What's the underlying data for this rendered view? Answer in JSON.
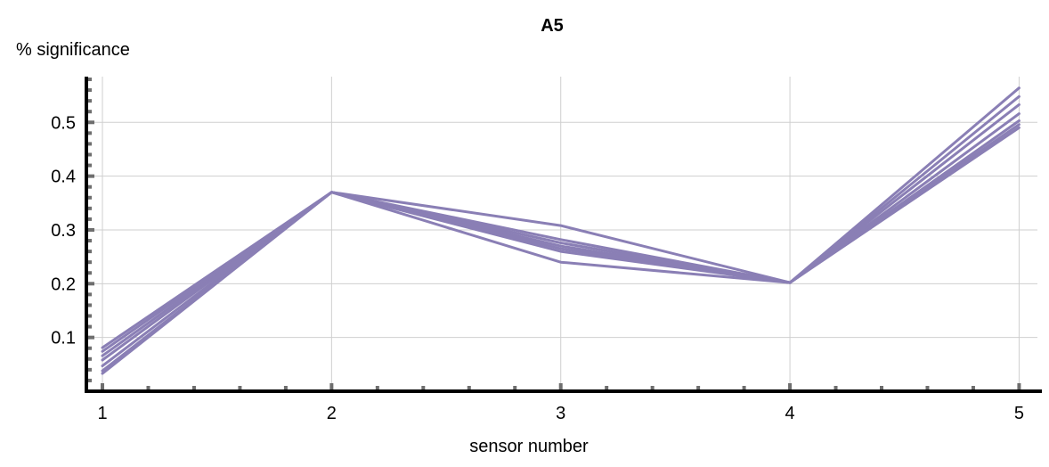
{
  "chart_data": {
    "type": "line",
    "title": "A5",
    "xlabel": "sensor number",
    "ylabel": "% significance",
    "x": [
      1,
      2,
      3,
      4,
      5
    ],
    "xlim": [
      0.93,
      5.08
    ],
    "ylim": [
      -0.0,
      0.585
    ],
    "xticks": [
      1,
      2,
      3,
      4,
      5
    ],
    "yticks": [
      0.1,
      0.2,
      0.3,
      0.4,
      0.5
    ],
    "ytick_labels": [
      "0.1",
      "0.2",
      "0.3",
      "0.4",
      "0.5"
    ],
    "xtick_labels": [
      "1",
      "2",
      "3",
      "4",
      "5"
    ],
    "grid": true,
    "legend": "none",
    "line_color": "#8a7fb5",
    "series": [
      {
        "values": [
          0.081,
          0.37,
          0.308,
          0.202,
          0.49
        ]
      },
      {
        "values": [
          0.074,
          0.37,
          0.282,
          0.202,
          0.496
        ]
      },
      {
        "values": [
          0.066,
          0.37,
          0.276,
          0.202,
          0.503
        ]
      },
      {
        "values": [
          0.058,
          0.37,
          0.27,
          0.202,
          0.516
        ]
      },
      {
        "values": [
          0.047,
          0.37,
          0.265,
          0.202,
          0.533
        ]
      },
      {
        "values": [
          0.038,
          0.37,
          0.26,
          0.202,
          0.548
        ]
      },
      {
        "values": [
          0.033,
          0.37,
          0.24,
          0.202,
          0.564
        ]
      }
    ]
  }
}
